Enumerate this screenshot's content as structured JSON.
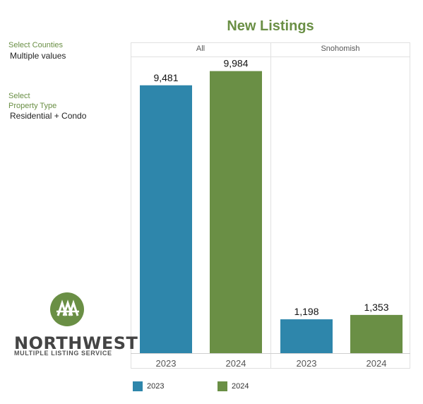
{
  "filters": {
    "counties_label": "Select Counties",
    "counties_value": "Multiple values",
    "property_label_line1": "Select",
    "property_label_line2": "Property Type",
    "property_value": "Residential + Condo"
  },
  "logo": {
    "word": "NORTHWEST",
    "sub": "MULTIPLE LISTING SERVICE",
    "mark_color": "#6a8f45"
  },
  "colors": {
    "2023": "#2e86ab",
    "2024": "#6a8f45"
  },
  "chart_data": {
    "type": "bar",
    "title": "New Listings",
    "panels": [
      "All",
      "Snohomish"
    ],
    "categories": [
      "2023",
      "2024"
    ],
    "series": [
      {
        "panel": "All",
        "values": [
          9481,
          9984
        ],
        "labels": [
          "9,481",
          "9,984"
        ]
      },
      {
        "panel": "Snohomish",
        "values": [
          1198,
          1353
        ],
        "labels": [
          "1,198",
          "1,353"
        ]
      }
    ],
    "ylim": [
      0,
      10500
    ],
    "legend": {
      "position": "bottom",
      "entries": [
        "2023",
        "2024"
      ]
    }
  }
}
